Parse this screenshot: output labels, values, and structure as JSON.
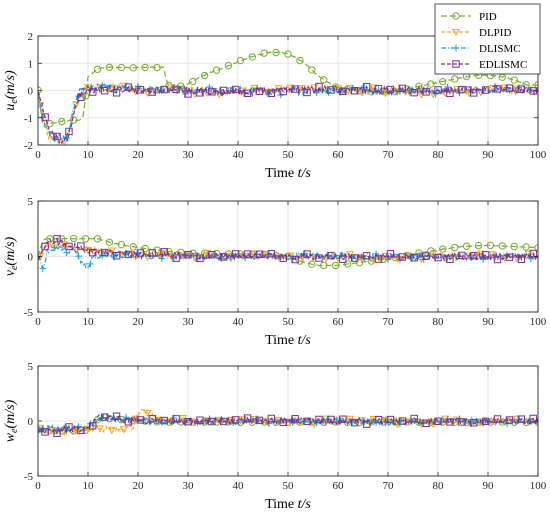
{
  "chart_data": [
    {
      "type": "line",
      "xlabel": "Time t/s",
      "ylabel": "u_e(m/s)",
      "xlim": [
        0,
        100
      ],
      "ylim": [
        -2,
        2
      ],
      "x_ticks": [
        0,
        10,
        20,
        30,
        40,
        50,
        60,
        70,
        80,
        90,
        100
      ],
      "y_ticks": [
        -2,
        -1,
        0,
        1,
        2
      ],
      "grid": true,
      "legend": "top-right",
      "series": [
        {
          "name": "PID",
          "color": "#77ac30",
          "marker": "circle",
          "x": [
            0,
            1,
            2,
            3,
            4,
            5,
            6,
            7,
            8,
            9,
            10,
            12,
            14,
            16,
            18,
            20,
            22,
            24,
            25,
            26,
            27,
            28,
            30,
            32,
            35,
            38,
            40,
            43,
            46,
            48,
            50,
            53,
            56,
            58,
            60,
            62,
            65,
            68,
            70,
            73,
            76,
            80,
            84,
            87,
            90,
            93,
            96,
            98,
            100
          ],
          "y": [
            0,
            -1.3,
            -1.2,
            -1.2,
            -1.2,
            -1.1,
            -1.1,
            -1.1,
            -1.1,
            -1.0,
            0.5,
            0.8,
            0.85,
            0.85,
            0.85,
            0.85,
            0.85,
            0.85,
            0.85,
            0.2,
            0.1,
            0.1,
            0.25,
            0.45,
            0.7,
            0.9,
            1.05,
            1.25,
            1.4,
            1.4,
            1.35,
            1.05,
            0.55,
            0.3,
            0.1,
            0.05,
            0.0,
            -0.05,
            -0.05,
            0.0,
            0.15,
            0.3,
            0.45,
            0.55,
            0.55,
            0.5,
            0.35,
            0.2,
            0.2
          ]
        },
        {
          "name": "DLPID",
          "color": "#f5a623",
          "marker": "triangle-down",
          "x": [
            0,
            1,
            2,
            3,
            4,
            5,
            6,
            7,
            8,
            9,
            10,
            15,
            20,
            30,
            40,
            50,
            60,
            70,
            80,
            90,
            100
          ],
          "y": [
            0,
            -0.9,
            -1.6,
            -1.75,
            -1.8,
            -1.8,
            -1.7,
            -0.9,
            -0.2,
            0.0,
            0.05,
            0.1,
            0.05,
            0.0,
            -0.05,
            0.0,
            0.0,
            0.0,
            -0.05,
            0.0,
            0.0
          ]
        },
        {
          "name": "DLISMC",
          "color": "#1f9ee8",
          "marker": "plus",
          "x": [
            0,
            1,
            2,
            3,
            4,
            5,
            6,
            7,
            8,
            9,
            10,
            15,
            20,
            30,
            40,
            50,
            60,
            70,
            80,
            90,
            100
          ],
          "y": [
            0,
            -1.0,
            -1.5,
            -1.65,
            -1.7,
            -1.75,
            -1.6,
            -0.8,
            -0.1,
            0.05,
            0.1,
            0.1,
            0.05,
            0.0,
            0.0,
            -0.05,
            0.0,
            0.0,
            0.0,
            0.05,
            0.0
          ]
        },
        {
          "name": "EDLISMC",
          "color": "#7e2f8e",
          "marker": "square",
          "x": [
            0,
            1,
            2,
            3,
            4,
            5,
            6,
            7,
            8,
            9,
            10,
            15,
            20,
            30,
            40,
            50,
            60,
            70,
            80,
            90,
            100
          ],
          "y": [
            0,
            -0.6,
            -1.3,
            -1.65,
            -1.8,
            -1.85,
            -1.75,
            -1.0,
            -0.3,
            0.0,
            0.05,
            0.05,
            0.0,
            0.0,
            -0.05,
            0.0,
            0.05,
            0.0,
            0.0,
            0.0,
            0.0
          ]
        }
      ]
    },
    {
      "type": "line",
      "xlabel": "Time t/s",
      "ylabel": "v_e(m/s)",
      "xlim": [
        0,
        100
      ],
      "ylim": [
        -5,
        5
      ],
      "x_ticks": [
        0,
        10,
        20,
        30,
        40,
        50,
        60,
        70,
        80,
        90,
        100
      ],
      "y_ticks": [
        -5,
        0,
        5
      ],
      "grid": true,
      "series": [
        {
          "name": "PID",
          "color": "#77ac30",
          "marker": "circle",
          "x": [
            0,
            1,
            2,
            4,
            6,
            8,
            10,
            12,
            15,
            20,
            25,
            30,
            35,
            40,
            45,
            50,
            53,
            56,
            60,
            65,
            70,
            75,
            80,
            85,
            90,
            95,
            100
          ],
          "y": [
            0,
            1.5,
            1.6,
            1.6,
            1.6,
            1.6,
            1.6,
            1.6,
            1.2,
            0.8,
            0.5,
            0.3,
            0.3,
            0.2,
            0.2,
            0.0,
            -0.5,
            -0.8,
            -0.8,
            -0.5,
            -0.2,
            0.2,
            0.6,
            0.9,
            1.0,
            0.9,
            0.8
          ]
        },
        {
          "name": "DLPID",
          "color": "#f5a623",
          "marker": "triangle-down",
          "x": [
            0,
            1,
            2,
            3,
            5,
            8,
            10,
            15,
            20,
            30,
            40,
            50,
            60,
            70,
            80,
            90,
            100
          ],
          "y": [
            0,
            0.4,
            1.1,
            1.0,
            1.0,
            0.8,
            0.6,
            0.3,
            0.2,
            0.1,
            0.0,
            0.0,
            0.0,
            -0.1,
            0.0,
            0.0,
            0.0
          ]
        },
        {
          "name": "DLISMC",
          "color": "#1f9ee8",
          "marker": "plus",
          "x": [
            0,
            1,
            2,
            3,
            5,
            8,
            9,
            10,
            11,
            15,
            20,
            30,
            40,
            50,
            60,
            70,
            80,
            90,
            100
          ],
          "y": [
            0,
            -1.0,
            0.6,
            0.8,
            0.6,
            0.3,
            -0.8,
            -0.9,
            0.1,
            0.2,
            0.1,
            0.0,
            0.0,
            0.0,
            0.0,
            0.0,
            0.0,
            0.0,
            0.0
          ]
        },
        {
          "name": "EDLISMC",
          "color": "#7e2f8e",
          "marker": "square",
          "x": [
            0,
            1,
            2,
            3,
            5,
            8,
            10,
            15,
            20,
            30,
            40,
            50,
            60,
            70,
            80,
            90,
            100
          ],
          "y": [
            0,
            0.5,
            1.3,
            1.4,
            1.2,
            0.8,
            0.5,
            0.3,
            0.2,
            0.1,
            0.0,
            0.0,
            0.0,
            0.0,
            0.0,
            0.0,
            0.0
          ]
        }
      ]
    },
    {
      "type": "line",
      "xlabel": "Time t/s",
      "ylabel": "w_e(m/s)",
      "xlim": [
        0,
        100
      ],
      "ylim": [
        -5,
        5
      ],
      "x_ticks": [
        0,
        10,
        20,
        30,
        40,
        50,
        60,
        70,
        80,
        90,
        100
      ],
      "y_ticks": [
        -5,
        0,
        5
      ],
      "grid": true,
      "series": [
        {
          "name": "PID",
          "color": "#77ac30",
          "marker": "circle",
          "x": [
            0,
            2,
            5,
            8,
            10,
            11,
            12,
            13,
            15,
            18,
            20,
            25,
            30,
            40,
            50,
            60,
            70,
            80,
            90,
            100
          ],
          "y": [
            -0.8,
            -0.8,
            -0.9,
            -0.9,
            -0.8,
            -0.7,
            0.2,
            0.3,
            0.2,
            0.1,
            0.0,
            -0.1,
            -0.1,
            -0.1,
            -0.1,
            -0.1,
            -0.1,
            -0.1,
            -0.1,
            -0.1
          ]
        },
        {
          "name": "DLPID",
          "color": "#f5a623",
          "marker": "triangle-down",
          "x": [
            0,
            2,
            5,
            10,
            12,
            13,
            15,
            18,
            19,
            20,
            21,
            22,
            25,
            30,
            40,
            50,
            60,
            70,
            80,
            90,
            100
          ],
          "y": [
            -0.8,
            -0.9,
            -0.9,
            -0.8,
            -0.6,
            -0.7,
            -0.7,
            -0.7,
            -0.5,
            0.5,
            0.9,
            0.6,
            0.1,
            0.0,
            0.0,
            0.0,
            0.0,
            0.0,
            0.0,
            0.0,
            0.0
          ]
        },
        {
          "name": "DLISMC",
          "color": "#1f9ee8",
          "marker": "plus",
          "x": [
            0,
            2,
            5,
            10,
            12,
            13,
            15,
            20,
            30,
            40,
            50,
            60,
            70,
            80,
            90,
            100
          ],
          "y": [
            -0.7,
            -0.7,
            -0.7,
            -0.6,
            0.3,
            0.4,
            0.2,
            0.0,
            0.0,
            -0.1,
            0.0,
            0.0,
            -0.1,
            0.0,
            0.0,
            0.0
          ]
        },
        {
          "name": "EDLISMC",
          "color": "#7e2f8e",
          "marker": "square",
          "x": [
            0,
            2,
            5,
            10,
            12,
            13,
            15,
            20,
            30,
            40,
            50,
            60,
            70,
            80,
            90,
            100
          ],
          "y": [
            -0.9,
            -0.9,
            -0.8,
            -0.7,
            0.2,
            0.4,
            0.2,
            0.0,
            0.0,
            0.0,
            0.0,
            0.0,
            -0.1,
            0.0,
            0.0,
            0.0
          ]
        }
      ]
    }
  ]
}
